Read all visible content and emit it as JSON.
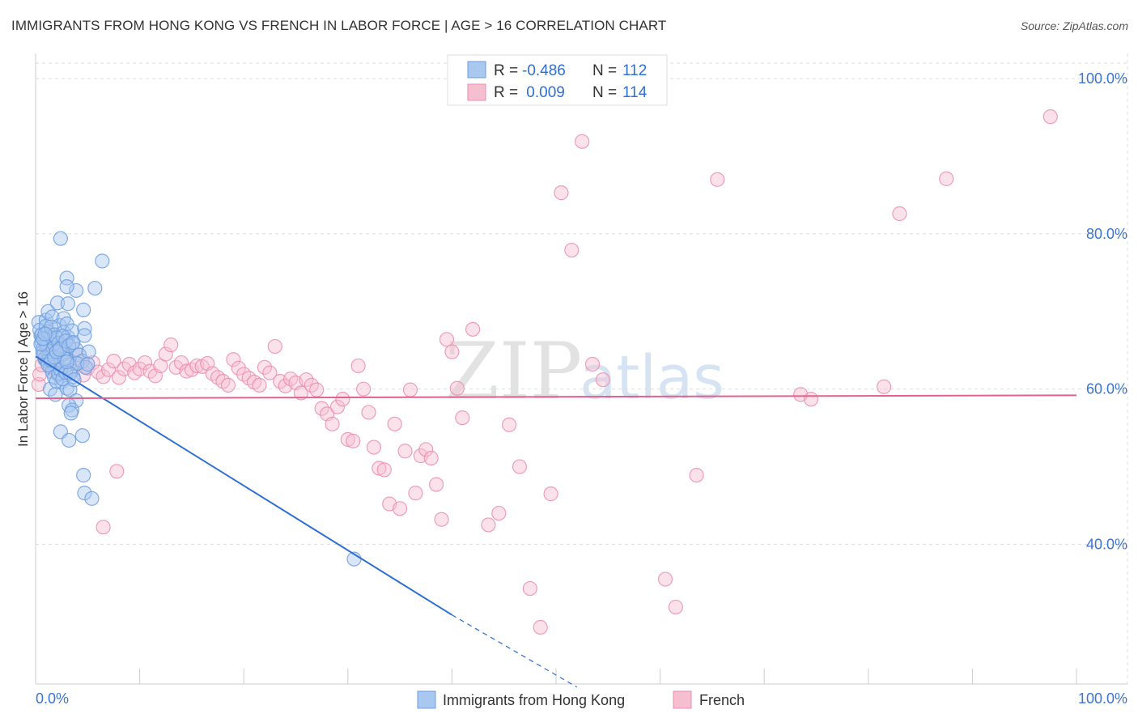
{
  "title": "IMMIGRANTS FROM HONG KONG VS FRENCH IN LABOR FORCE | AGE > 16 CORRELATION CHART",
  "source": "Source: ZipAtlas.com",
  "watermark": {
    "zip": "ZIP",
    "atlas": "atlas"
  },
  "colors": {
    "blue": "#2d6fd2",
    "pink": "#e0628d",
    "blue_fill": "#a9c8f0",
    "pink_fill": "#f6bfd0",
    "grid": "#dddddd"
  },
  "stats": {
    "blue": {
      "r_label": "R =",
      "r_value": "-0.486",
      "n_label": "N =",
      "n_value": "112"
    },
    "pink": {
      "r_label": "R =",
      "r_value": " 0.009",
      "n_label": "N =",
      "n_value": "114"
    }
  },
  "chart_data": {
    "type": "scatter",
    "xlabel": "",
    "ylabel": "In Labor Force | Age > 16",
    "xlim": [
      0,
      100
    ],
    "ylim": [
      22,
      102
    ],
    "x_tick_labels": [
      "0.0%",
      "100.0%"
    ],
    "y_ticks": [
      {
        "value": 40,
        "label": "40.0%"
      },
      {
        "value": 60,
        "label": "60.0%"
      },
      {
        "value": 80,
        "label": "80.0%"
      },
      {
        "value": 100,
        "label": "100.0%"
      }
    ],
    "grid": true,
    "legend_position": "bottom-center",
    "series": [
      {
        "name": "Immigrants from Hong Kong",
        "color": "#2d6fd2",
        "r": -0.486,
        "n": 112,
        "trend": {
          "x0": 0,
          "y0": 64.2,
          "x1": 40,
          "y1": 30.9,
          "dash_x1": 52,
          "dash_y1": 21.6
        },
        "points": [
          [
            0.3,
            68.6
          ],
          [
            0.5,
            66.9
          ],
          [
            0.6,
            66.1
          ],
          [
            0.7,
            65.2
          ],
          [
            0.8,
            64.5
          ],
          [
            0.9,
            63.8
          ],
          [
            0.4,
            67.6
          ],
          [
            1.0,
            68.9
          ],
          [
            1.1,
            66.3
          ],
          [
            1.2,
            65.1
          ],
          [
            1.3,
            64.2
          ],
          [
            1.4,
            63.4
          ],
          [
            1.5,
            67.1
          ],
          [
            1.6,
            66.4
          ],
          [
            1.7,
            65.6
          ],
          [
            1.8,
            64.9
          ],
          [
            1.9,
            64.1
          ],
          [
            2.0,
            63.3
          ],
          [
            2.1,
            62.6
          ],
          [
            2.2,
            61.8
          ],
          [
            1.2,
            70.0
          ],
          [
            1.6,
            69.3
          ],
          [
            2.1,
            71.1
          ],
          [
            2.4,
            66.0
          ],
          [
            2.6,
            65.4
          ],
          [
            2.8,
            64.7
          ],
          [
            3.0,
            63.9
          ],
          [
            3.2,
            63.1
          ],
          [
            3.4,
            62.4
          ],
          [
            3.6,
            61.6
          ],
          [
            2.3,
            68.2
          ],
          [
            2.7,
            67.3
          ],
          [
            3.1,
            66.7
          ],
          [
            3.5,
            65.9
          ],
          [
            3.9,
            65.1
          ],
          [
            4.2,
            64.4
          ],
          [
            4.5,
            63.6
          ],
          [
            4.8,
            62.8
          ],
          [
            2.5,
            60.9
          ],
          [
            3.0,
            60.1
          ],
          [
            1.4,
            60.0
          ],
          [
            1.9,
            59.3
          ],
          [
            3.3,
            59.9
          ],
          [
            3.9,
            58.5
          ],
          [
            3.2,
            57.9
          ],
          [
            3.5,
            57.3
          ],
          [
            3.4,
            56.9
          ],
          [
            2.4,
            54.5
          ],
          [
            3.2,
            53.4
          ],
          [
            4.5,
            54.0
          ],
          [
            4.6,
            48.9
          ],
          [
            4.7,
            46.6
          ],
          [
            5.4,
            45.9
          ],
          [
            2.4,
            79.4
          ],
          [
            6.4,
            76.5
          ],
          [
            3.0,
            74.3
          ],
          [
            3.9,
            72.7
          ],
          [
            5.7,
            73.0
          ],
          [
            3.0,
            73.2
          ],
          [
            4.6,
            70.2
          ],
          [
            3.1,
            71.0
          ],
          [
            2.7,
            69.1
          ],
          [
            3.0,
            68.4
          ],
          [
            3.5,
            67.5
          ],
          [
            4.7,
            67.8
          ],
          [
            4.7,
            66.9
          ],
          [
            5.1,
            64.8
          ],
          [
            4.0,
            63.3
          ],
          [
            5.0,
            63.2
          ],
          [
            0.6,
            67.0
          ],
          [
            0.8,
            66.3
          ],
          [
            1.0,
            65.9
          ],
          [
            1.1,
            65.6
          ],
          [
            1.3,
            66.9
          ],
          [
            1.5,
            66.6
          ],
          [
            1.7,
            65.2
          ],
          [
            0.9,
            64.0
          ],
          [
            1.1,
            63.6
          ],
          [
            1.4,
            62.8
          ],
          [
            1.6,
            62.2
          ],
          [
            1.8,
            61.5
          ],
          [
            2.0,
            61.0
          ],
          [
            2.2,
            62.0
          ],
          [
            2.4,
            62.5
          ],
          [
            2.6,
            61.3
          ],
          [
            2.9,
            62.1
          ],
          [
            3.3,
            62.0
          ],
          [
            3.7,
            61.2
          ],
          [
            0.7,
            64.8
          ],
          [
            1.0,
            68.1
          ],
          [
            1.2,
            67.4
          ],
          [
            1.5,
            68.0
          ],
          [
            1.8,
            67.0
          ],
          [
            2.0,
            66.6
          ],
          [
            2.2,
            65.9
          ],
          [
            2.4,
            65.3
          ],
          [
            2.6,
            64.5
          ],
          [
            2.8,
            63.9
          ],
          [
            3.0,
            63.5
          ],
          [
            0.5,
            65.8
          ],
          [
            0.7,
            66.5
          ],
          [
            0.9,
            67.1
          ],
          [
            1.2,
            63.1
          ],
          [
            1.5,
            63.7
          ],
          [
            1.8,
            64.1
          ],
          [
            2.0,
            64.8
          ],
          [
            2.3,
            65.1
          ],
          [
            2.6,
            66.8
          ],
          [
            2.9,
            66.2
          ],
          [
            3.2,
            65.6
          ],
          [
            30.6,
            38.1
          ],
          [
            3.6,
            66.0
          ]
        ]
      },
      {
        "name": "French",
        "color": "#e0628d",
        "r": 0.009,
        "n": 114,
        "trend": {
          "x0": 0,
          "y0": 58.8,
          "x1": 100,
          "y1": 59.2
        },
        "points": [
          [
            0.3,
            60.6
          ],
          [
            0.4,
            61.9
          ],
          [
            0.6,
            63.1
          ],
          [
            0.8,
            64.4
          ],
          [
            1.0,
            65.3
          ],
          [
            1.3,
            64.0
          ],
          [
            1.6,
            62.9
          ],
          [
            1.9,
            62.3
          ],
          [
            2.2,
            63.5
          ],
          [
            2.5,
            64.7
          ],
          [
            2.8,
            65.6
          ],
          [
            3.1,
            63.9
          ],
          [
            3.4,
            62.4
          ],
          [
            3.8,
            63.3
          ],
          [
            4.2,
            64.4
          ],
          [
            4.6,
            61.8
          ],
          [
            5.0,
            62.7
          ],
          [
            5.5,
            63.4
          ],
          [
            6.0,
            62.2
          ],
          [
            6.5,
            61.6
          ],
          [
            7.0,
            62.5
          ],
          [
            7.5,
            63.6
          ],
          [
            8.0,
            61.5
          ],
          [
            8.5,
            62.6
          ],
          [
            9.0,
            63.2
          ],
          [
            9.5,
            62.1
          ],
          [
            10.0,
            62.6
          ],
          [
            10.5,
            63.4
          ],
          [
            11.0,
            62.3
          ],
          [
            11.5,
            61.7
          ],
          [
            12.0,
            63.0
          ],
          [
            12.5,
            64.5
          ],
          [
            13.0,
            65.7
          ],
          [
            13.5,
            62.8
          ],
          [
            14.0,
            63.4
          ],
          [
            14.5,
            62.3
          ],
          [
            15.0,
            62.5
          ],
          [
            15.5,
            63.0
          ],
          [
            16.0,
            62.9
          ],
          [
            16.5,
            63.3
          ],
          [
            17.0,
            62.0
          ],
          [
            17.5,
            61.5
          ],
          [
            18.0,
            61.0
          ],
          [
            18.5,
            60.5
          ],
          [
            19.0,
            63.8
          ],
          [
            19.5,
            62.7
          ],
          [
            20.0,
            61.9
          ],
          [
            20.5,
            61.4
          ],
          [
            21.0,
            60.9
          ],
          [
            21.5,
            60.5
          ],
          [
            22.0,
            62.8
          ],
          [
            22.5,
            62.1
          ],
          [
            23.0,
            65.5
          ],
          [
            23.5,
            61.0
          ],
          [
            24.0,
            60.4
          ],
          [
            24.5,
            61.3
          ],
          [
            25.0,
            60.8
          ],
          [
            25.5,
            59.5
          ],
          [
            26.0,
            61.2
          ],
          [
            26.5,
            60.5
          ],
          [
            27.0,
            59.9
          ],
          [
            27.5,
            57.5
          ],
          [
            28.0,
            56.8
          ],
          [
            28.5,
            55.5
          ],
          [
            29.0,
            57.7
          ],
          [
            29.5,
            58.7
          ],
          [
            30.0,
            53.5
          ],
          [
            30.5,
            53.3
          ],
          [
            31.0,
            63.0
          ],
          [
            31.5,
            60.0
          ],
          [
            32.0,
            57.0
          ],
          [
            32.5,
            52.5
          ],
          [
            33.0,
            49.8
          ],
          [
            33.5,
            49.6
          ],
          [
            34.0,
            45.2
          ],
          [
            34.5,
            55.5
          ],
          [
            35.0,
            44.6
          ],
          [
            35.5,
            52.0
          ],
          [
            36.0,
            59.9
          ],
          [
            36.5,
            46.6
          ],
          [
            37.0,
            51.4
          ],
          [
            37.5,
            52.2
          ],
          [
            38.0,
            51.1
          ],
          [
            38.5,
            47.7
          ],
          [
            39.0,
            43.2
          ],
          [
            39.5,
            66.4
          ],
          [
            40.0,
            64.8
          ],
          [
            40.5,
            60.1
          ],
          [
            41.0,
            56.3
          ],
          [
            42.0,
            67.7
          ],
          [
            43.5,
            42.5
          ],
          [
            44.5,
            44.0
          ],
          [
            45.5,
            55.4
          ],
          [
            46.5,
            50.0
          ],
          [
            47.5,
            34.3
          ],
          [
            48.5,
            29.3
          ],
          [
            49.5,
            46.5
          ],
          [
            50.5,
            85.3
          ],
          [
            51.5,
            77.9
          ],
          [
            52.5,
            91.9
          ],
          [
            53.5,
            63.2
          ],
          [
            54.5,
            61.2
          ],
          [
            60.5,
            35.5
          ],
          [
            61.5,
            31.9
          ],
          [
            63.5,
            48.9
          ],
          [
            65.5,
            87.0
          ],
          [
            73.5,
            59.3
          ],
          [
            74.5,
            58.7
          ],
          [
            81.5,
            60.3
          ],
          [
            83.0,
            82.6
          ],
          [
            87.5,
            87.1
          ],
          [
            97.5,
            95.1
          ],
          [
            6.5,
            42.2
          ],
          [
            7.8,
            49.4
          ]
        ]
      }
    ]
  },
  "legend": {
    "blue_label": "Immigrants from Hong Kong",
    "pink_label": "French"
  }
}
